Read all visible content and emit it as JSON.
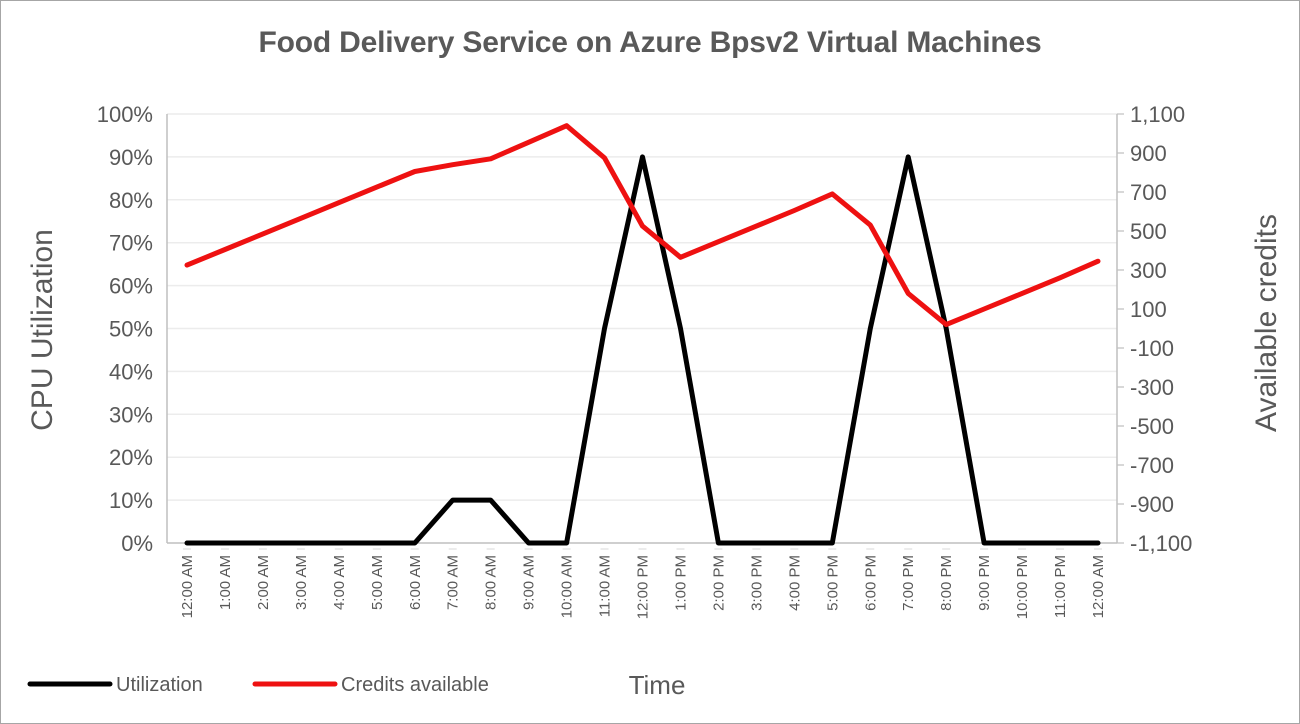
{
  "title": "Food Delivery Service on Azure Bpsv2 Virtual Machines",
  "colors": {
    "utilization": "#000000",
    "credits": "#ee1111",
    "grid": "#ececec",
    "text": "#595959",
    "axis": "#bfbfbf"
  },
  "legend": [
    {
      "label": "Utilization",
      "color": "#000000"
    },
    {
      "label": "Credits available",
      "color": "#ee1111"
    }
  ],
  "chart_data": {
    "type": "line",
    "title": "Food Delivery Service on Azure Bpsv2 Virtual Machines",
    "xlabel": "Time",
    "ylabel": "CPU Utilization",
    "y2label": "Available credits",
    "categories": [
      "12:00 AM",
      "1:00 AM",
      "2:00 AM",
      "3:00 AM",
      "4:00 AM",
      "5:00 AM",
      "6:00 AM",
      "7:00 AM",
      "8:00 AM",
      "9:00 AM",
      "10:00 AM",
      "11:00 AM",
      "12:00 PM",
      "1:00 PM",
      "2:00 PM",
      "3:00 PM",
      "4:00 PM",
      "5:00 PM",
      "6:00 PM",
      "7:00 PM",
      "8:00 PM",
      "9:00 PM",
      "10:00 PM",
      "11:00 PM",
      "12:00 AM"
    ],
    "series": [
      {
        "name": "Utilization",
        "axis": "left",
        "color": "#000000",
        "values": [
          0,
          0,
          0,
          0,
          0,
          0,
          0,
          10,
          10,
          0,
          0,
          50,
          90,
          50,
          0,
          0,
          0,
          0,
          50,
          90,
          50,
          0,
          0,
          0,
          0
        ]
      },
      {
        "name": "Credits available",
        "axis": "right",
        "color": "#ee1111",
        "values": [
          325,
          405,
          485,
          565,
          645,
          725,
          805,
          840,
          870,
          955,
          1040,
          875,
          525,
          365,
          445,
          525,
          605,
          690,
          530,
          180,
          20,
          100,
          180,
          260,
          345
        ]
      }
    ],
    "ylim": [
      0,
      100
    ],
    "y_ticks": [
      "0%",
      "10%",
      "20%",
      "30%",
      "40%",
      "50%",
      "60%",
      "70%",
      "80%",
      "90%",
      "100%"
    ],
    "y2lim": [
      -1100,
      1100
    ],
    "y2_ticks": [
      "-1,100",
      "-900",
      "-700",
      "-500",
      "-300",
      "-100",
      "100",
      "300",
      "500",
      "700",
      "900",
      "1,100"
    ],
    "grid": true,
    "legend_position": "bottom-left"
  }
}
